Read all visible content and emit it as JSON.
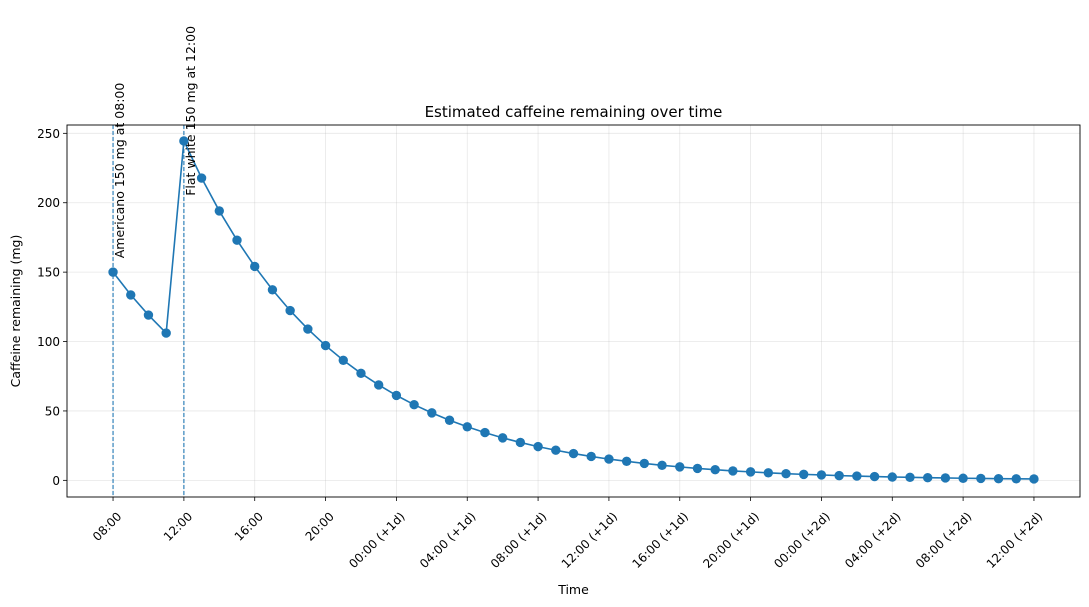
{
  "chart_data": {
    "type": "line",
    "title": "Estimated caffeine remaining over time",
    "xlabel": "Time",
    "ylabel": "Caffeine remaining (mg)",
    "x_unit": "hours from 08:00",
    "xlim": [
      -2.6,
      54.6
    ],
    "ylim": [
      -12,
      256
    ],
    "grid": true,
    "x_ticks": [
      {
        "x": 0,
        "label": "08:00"
      },
      {
        "x": 4,
        "label": "12:00"
      },
      {
        "x": 8,
        "label": "16:00"
      },
      {
        "x": 12,
        "label": "20:00"
      },
      {
        "x": 16,
        "label": "00:00 (+1d)"
      },
      {
        "x": 20,
        "label": "04:00 (+1d)"
      },
      {
        "x": 24,
        "label": "08:00 (+1d)"
      },
      {
        "x": 28,
        "label": "12:00 (+1d)"
      },
      {
        "x": 32,
        "label": "16:00 (+1d)"
      },
      {
        "x": 36,
        "label": "20:00 (+1d)"
      },
      {
        "x": 40,
        "label": "00:00 (+2d)"
      },
      {
        "x": 44,
        "label": "04:00 (+2d)"
      },
      {
        "x": 48,
        "label": "08:00 (+2d)"
      },
      {
        "x": 52,
        "label": "12:00 (+2d)"
      }
    ],
    "y_ticks": [
      0,
      50,
      100,
      150,
      200,
      250
    ],
    "series": [
      {
        "color": "#1f77b4",
        "x": [
          0,
          1,
          2,
          3,
          4,
          5,
          6,
          7,
          8,
          9,
          10,
          11,
          12,
          13,
          14,
          15,
          16,
          17,
          18,
          19,
          20,
          21,
          22,
          23,
          24,
          25,
          26,
          27,
          28,
          29,
          30,
          31,
          32,
          33,
          34,
          35,
          36,
          37,
          38,
          39,
          40,
          41,
          42,
          43,
          44,
          45,
          46,
          47,
          48,
          49,
          50,
          51,
          52
        ],
        "y": [
          150,
          133.6,
          119.1,
          106.1,
          244.5,
          217.8,
          194.1,
          173.0,
          154.1,
          137.3,
          122.3,
          109.0,
          97.1,
          86.5,
          77.1,
          68.7,
          61.2,
          54.5,
          48.6,
          43.3,
          38.6,
          34.4,
          30.6,
          27.3,
          24.3,
          21.7,
          19.3,
          17.2,
          15.3,
          13.7,
          12.2,
          10.8,
          9.7,
          8.6,
          7.7,
          6.8,
          6.1,
          5.4,
          4.8,
          4.3,
          3.9,
          3.4,
          3.1,
          2.7,
          2.4,
          2.2,
          1.9,
          1.7,
          1.5,
          1.4,
          1.2,
          1.1,
          1.0
        ]
      }
    ],
    "annotations": [
      {
        "x": 0,
        "label": "Americano 150 mg at 08:00"
      },
      {
        "x": 4,
        "label": "Flat white 150 mg at 12:00"
      }
    ]
  }
}
